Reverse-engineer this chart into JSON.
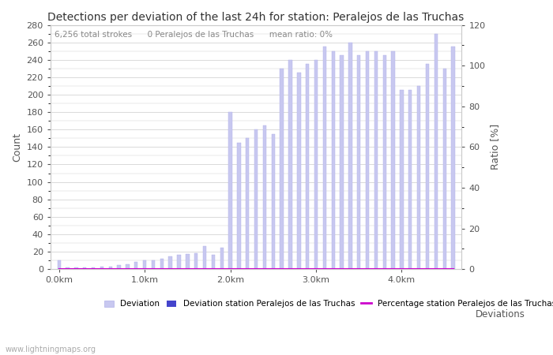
{
  "title": "Detections per deviation of the last 24h for station: Peralejos de las Truchas",
  "subtitle": "6,256 total strokes      0 Peralejos de las Truchas      mean ratio: 0%",
  "xlabel": "Deviations",
  "ylabel_left": "Count",
  "ylabel_right": "Ratio [%]",
  "ylim_left": [
    0,
    280
  ],
  "ylim_right": [
    0,
    120
  ],
  "xlim": [
    -0.1,
    4.7
  ],
  "yticks_left": [
    0,
    20,
    40,
    60,
    80,
    100,
    120,
    140,
    160,
    180,
    200,
    220,
    240,
    260,
    280
  ],
  "yticks_right": [
    0,
    20,
    40,
    60,
    80,
    100,
    120
  ],
  "xtick_labels": [
    "0.0km",
    "1.0km",
    "2.0km",
    "3.0km",
    "4.0km"
  ],
  "xtick_positions": [
    0.0,
    1.0,
    2.0,
    3.0,
    4.0
  ],
  "bar_width": 0.04,
  "bar_positions": [
    0.0,
    0.1,
    0.2,
    0.3,
    0.4,
    0.5,
    0.6,
    0.7,
    0.8,
    0.9,
    1.0,
    1.1,
    1.2,
    1.3,
    1.4,
    1.5,
    1.6,
    1.7,
    1.8,
    1.9,
    2.0,
    2.1,
    2.2,
    2.3,
    2.4,
    2.5,
    2.6,
    2.7,
    2.8,
    2.9,
    3.0,
    3.1,
    3.2,
    3.3,
    3.4,
    3.5,
    3.6,
    3.7,
    3.8,
    3.9,
    4.0,
    4.1,
    4.2,
    4.3,
    4.4,
    4.5,
    4.6
  ],
  "bar_heights": [
    10,
    2,
    2,
    2,
    2,
    3,
    3,
    5,
    6,
    8,
    10,
    10,
    12,
    15,
    16,
    17,
    18,
    26,
    16,
    25,
    180,
    145,
    150,
    160,
    165,
    155,
    230,
    240,
    225,
    235,
    240,
    255,
    250,
    245,
    260,
    245,
    250,
    250,
    245,
    250,
    205,
    205,
    210,
    235,
    270,
    230,
    255
  ],
  "station_bar_heights": [
    0,
    0,
    0,
    0,
    0,
    0,
    0,
    0,
    0,
    0,
    0,
    0,
    0,
    0,
    0,
    0,
    0,
    0,
    0,
    0,
    0,
    0,
    0,
    0,
    0,
    0,
    0,
    0,
    0,
    0,
    0,
    0,
    0,
    0,
    0,
    0,
    0,
    0,
    0,
    0,
    0,
    0,
    0,
    0,
    0,
    0,
    0
  ],
  "ratio_values": [
    0,
    0,
    0,
    0,
    0,
    0,
    0,
    0,
    0,
    0,
    0,
    0,
    0,
    0,
    0,
    0,
    0,
    0,
    0,
    0,
    0,
    0,
    0,
    0,
    0,
    0,
    0,
    0,
    0,
    0,
    0,
    0,
    0,
    0,
    0,
    0,
    0,
    0,
    0,
    0,
    0,
    0,
    0,
    0,
    0,
    0,
    0
  ],
  "bar_color": "#c8c8f0",
  "bar_edge_color": "#b0b0e8",
  "station_bar_color": "#4444cc",
  "ratio_line_color": "#cc00cc",
  "background_color": "#ffffff",
  "grid_color": "#cccccc",
  "watermark": "www.lightningmaps.org",
  "text_color": "#555555",
  "subtitle_color": "#888888"
}
